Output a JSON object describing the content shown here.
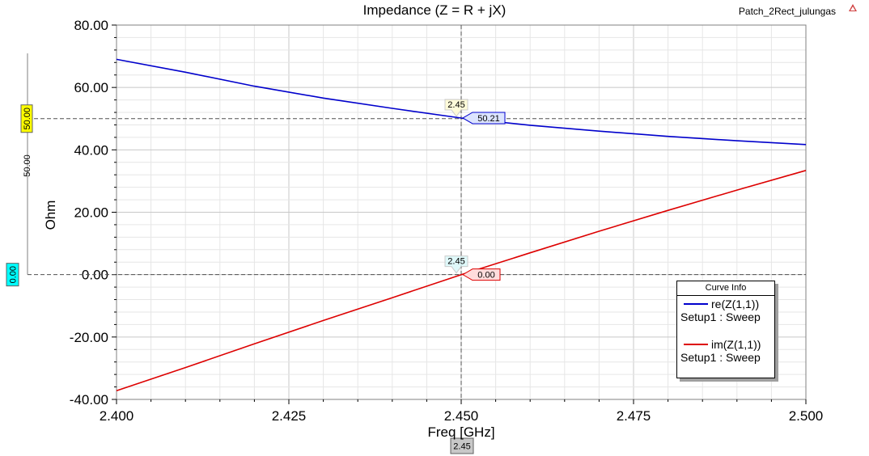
{
  "chart_data": {
    "type": "line",
    "title": "Impedance (Z = R + jX)",
    "project_label": "Patch_2Rect_julungas",
    "xlabel": "Freq [GHz]",
    "ylabel": "Ohm",
    "xlim": [
      2.4,
      2.5
    ],
    "ylim": [
      -40,
      80
    ],
    "x_ticks": [
      "2.400",
      "2.425",
      "2.450",
      "2.475",
      "2.500"
    ],
    "y_ticks": [
      "80.00",
      "60.00",
      "40.00",
      "20.00",
      "0.00",
      "-20.00",
      "-40.00"
    ],
    "grid": true,
    "legend_title": "Curve Info",
    "series": [
      {
        "name": "re(Z(1,1))",
        "setup": "Setup1 : Sweep",
        "color": "#0000cc",
        "x": [
          2.4,
          2.41,
          2.42,
          2.43,
          2.44,
          2.45,
          2.46,
          2.47,
          2.48,
          2.49,
          2.5
        ],
        "y": [
          69.0,
          64.9,
          60.4,
          56.6,
          53.3,
          50.2,
          47.9,
          46.0,
          44.3,
          42.9,
          41.7
        ]
      },
      {
        "name": "im(Z(1,1))",
        "setup": "Setup1 : Sweep",
        "color": "#dd0000",
        "x": [
          2.4,
          2.41,
          2.42,
          2.43,
          2.44,
          2.45,
          2.46,
          2.47,
          2.48,
          2.49,
          2.5
        ],
        "y": [
          -37.2,
          -29.8,
          -22.2,
          -14.7,
          -7.4,
          0.0,
          7.0,
          13.9,
          20.6,
          27.1,
          33.4
        ]
      }
    ],
    "markers": {
      "x_value": 2.45,
      "x_label": "2.45",
      "re_value": 50.21,
      "re_label": "50.21",
      "im_value": 0.0,
      "im_label": "0.00",
      "y_ref_re": 50.0,
      "y_ref_re_label": "50.00",
      "y_ref_im": 0.0,
      "y_ref_im_label": "0.00",
      "delta_label": "50.00"
    }
  }
}
